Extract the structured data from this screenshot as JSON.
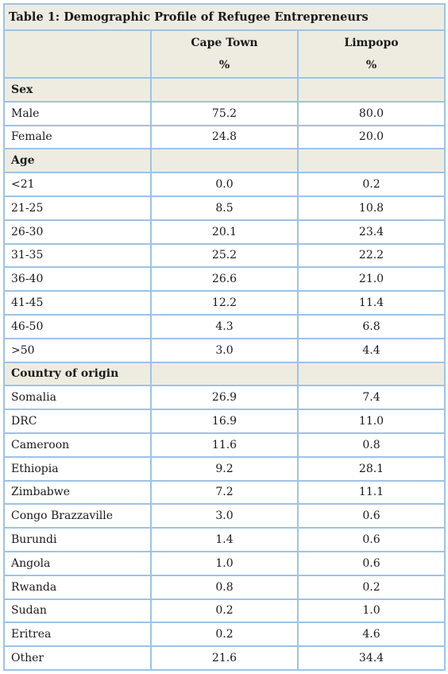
{
  "table": {
    "title": "Table 1:  Demographic Profile of Refugee Entrepreneurs",
    "columns": [
      {
        "name": "Cape Town",
        "unit": "%"
      },
      {
        "name": "Limpopo",
        "unit": "%"
      }
    ],
    "sections": [
      {
        "label": "Sex",
        "rows": [
          {
            "label": "Male",
            "cape_town": "75.2",
            "limpopo": "80.0"
          },
          {
            "label": "Female",
            "cape_town": "24.8",
            "limpopo": "20.0"
          }
        ]
      },
      {
        "label": "Age",
        "rows": [
          {
            "label": "<21",
            "cape_town": "0.0",
            "limpopo": "0.2"
          },
          {
            "label": "21-25",
            "cape_town": "8.5",
            "limpopo": "10.8"
          },
          {
            "label": "26-30",
            "cape_town": "20.1",
            "limpopo": "23.4"
          },
          {
            "label": "31-35",
            "cape_town": "25.2",
            "limpopo": "22.2"
          },
          {
            "label": "36-40",
            "cape_town": "26.6",
            "limpopo": "21.0"
          },
          {
            "label": "41-45",
            "cape_town": "12.2",
            "limpopo": "11.4"
          },
          {
            "label": "46-50",
            "cape_town": "4.3",
            "limpopo": "6.8"
          },
          {
            "label": ">50",
            "cape_town": "3.0",
            "limpopo": "4.4"
          }
        ]
      },
      {
        "label": "Country of origin",
        "rows": [
          {
            "label": "Somalia",
            "cape_town": "26.9",
            "limpopo": "7.4"
          },
          {
            "label": "DRC",
            "cape_town": "16.9",
            "limpopo": "11.0"
          },
          {
            "label": "Cameroon",
            "cape_town": "11.6",
            "limpopo": "0.8"
          },
          {
            "label": "Ethiopia",
            "cape_town": "9.2",
            "limpopo": "28.1"
          },
          {
            "label": "Zimbabwe",
            "cape_town": "7.2",
            "limpopo": "11.1"
          },
          {
            "label": "Congo Brazzaville",
            "cape_town": "3.0",
            "limpopo": "0.6"
          },
          {
            "label": "Burundi",
            "cape_town": "1.4",
            "limpopo": "0.6"
          },
          {
            "label": "Angola",
            "cape_town": "1.0",
            "limpopo": "0.6"
          },
          {
            "label": "Rwanda",
            "cape_town": "0.8",
            "limpopo": "0.2"
          },
          {
            "label": "Sudan",
            "cape_town": "0.2",
            "limpopo": "1.0"
          },
          {
            "label": "Eritrea",
            "cape_town": "0.2",
            "limpopo": "4.6"
          },
          {
            "label": "Other",
            "cape_town": "21.6",
            "limpopo": "34.4"
          }
        ]
      }
    ]
  },
  "colors": {
    "border": "#9dc3e6",
    "header_fill": "#eeece1",
    "text": "#1a1a1a"
  }
}
